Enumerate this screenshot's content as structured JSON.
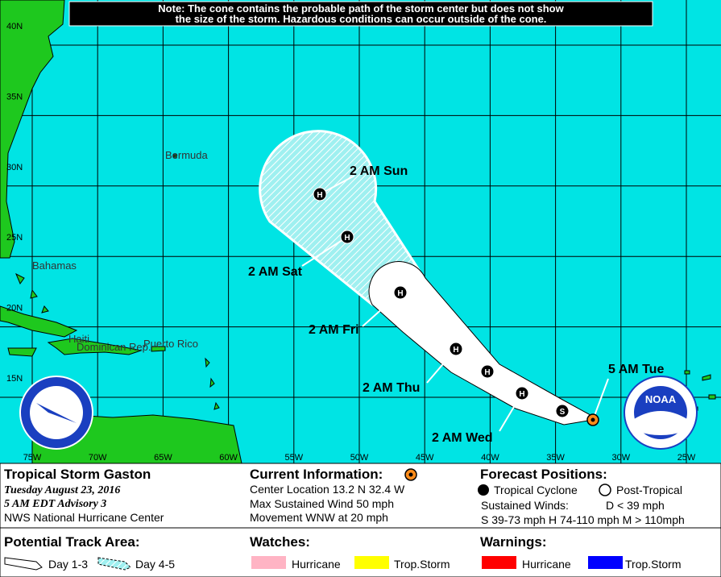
{
  "note": [
    "Note: The cone contains the probable path of the storm center but does not show",
    "the size of the storm. Hazardous conditions can occur outside of the cone."
  ],
  "map": {
    "latitude_labels": [
      "40N",
      "35N",
      "30N",
      "25N",
      "20N",
      "15N"
    ],
    "longitude_labels": [
      "75W",
      "70W",
      "65W",
      "60W",
      "55W",
      "50W",
      "45W",
      "40W",
      "35W",
      "30W",
      "25W"
    ],
    "places": [
      "Bermuda",
      "Bahamas",
      "Haiti",
      "Dominican Rep.",
      "Puerto Rico"
    ],
    "forecast_labels": [
      "5 AM Tue",
      "2 AM Wed",
      "2 AM Thu",
      "2 AM Fri",
      "2 AM Sat",
      "2 AM Sun"
    ],
    "markers": [
      "S",
      "H",
      "H",
      "H",
      "H",
      "H",
      "H"
    ],
    "logo": "NOAA"
  },
  "storm": {
    "name": "Tropical Storm Gaston",
    "date": "Tuesday  August 23, 2016",
    "advisory": "5 AM EDT Advisory 3",
    "center": "NWS National Hurricane Center"
  },
  "current": {
    "heading": "Current Information:",
    "location": "Center Location 13.2 N  32.4 W",
    "wind": "Max Sustained Wind  50 mph",
    "movement": "Movement WNW at  20 mph"
  },
  "forecast": {
    "heading": "Forecast Positions:",
    "tropical": "Tropical Cyclone",
    "post_tropical": "Post-Tropical",
    "winds_label": "Sustained Winds:",
    "d": "D  < 39 mph",
    "scale": "S  39-73 mph  H  74-110 mph  M  > 110mph"
  },
  "track_area": {
    "heading": "Potential Track Area:",
    "day13": "Day 1-3",
    "day45": "Day 4-5"
  },
  "watches": {
    "heading": "Watches:",
    "hurricane": "Hurricane",
    "storm": "Trop.Storm"
  },
  "warnings": {
    "heading": "Warnings:",
    "hurricane": "Hurricane",
    "storm": "Trop.Storm"
  }
}
